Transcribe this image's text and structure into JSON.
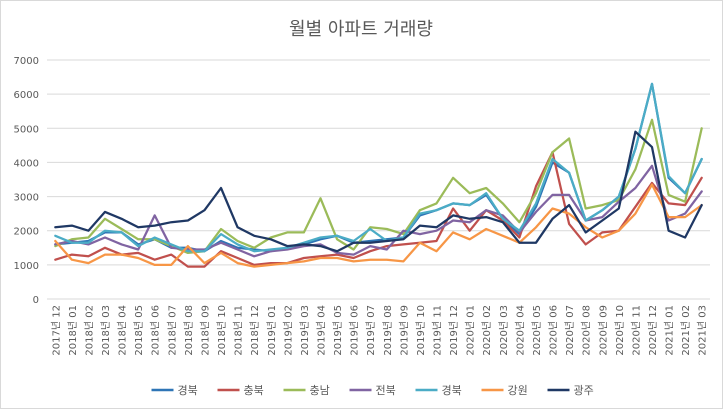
{
  "chart_data": {
    "type": "line",
    "title": "월별 아파트 거래량",
    "xlabel": "",
    "ylabel": "",
    "ylim": [
      0,
      7000
    ],
    "yticks": [
      0,
      1000,
      2000,
      3000,
      4000,
      5000,
      6000,
      7000
    ],
    "grid": true,
    "legend_position": "bottom",
    "x": [
      "2017년 12",
      "2018년 01",
      "2018년 02",
      "2018년 03",
      "2018년 04",
      "2018년 05",
      "2018년 06",
      "2018년 07",
      "2018년 08",
      "2018년 09",
      "2018년 10",
      "2018년 11",
      "2018년 12",
      "2019년 01",
      "2019년 02",
      "2019년 03",
      "2019년 04",
      "2019년 05",
      "2019년 06",
      "2019년 07",
      "2019년 08",
      "2019년 09",
      "2019년 10",
      "2019년 11",
      "2019년 12",
      "2020년 01",
      "2020년 02",
      "2020년 03",
      "2020년 04",
      "2020년 05",
      "2020년 06",
      "2020년 07",
      "2020년 08",
      "2020년 09",
      "2020년 10",
      "2020년 11",
      "2020년 12",
      "2021년 01",
      "2021년 02",
      "2021년 03"
    ],
    "series": [
      {
        "name": "경북",
        "color": "#2e75b6",
        "values": [
          1600,
          1650,
          1700,
          1950,
          1950,
          1600,
          1750,
          1500,
          1500,
          1400,
          1700,
          1500,
          1450,
          1400,
          1500,
          1600,
          1750,
          1850,
          1650,
          1700,
          1750,
          1800,
          2450,
          2600,
          2800,
          2750,
          3050,
          2350,
          1900,
          2700,
          4000,
          3700,
          2300,
          2600,
          3000,
          4400,
          6300,
          3550,
          3100,
          4100
        ]
      },
      {
        "name": "충북",
        "color": "#c0504d",
        "values": [
          1150,
          1300,
          1250,
          1500,
          1300,
          1350,
          1150,
          1300,
          950,
          950,
          1400,
          1200,
          1000,
          1050,
          1050,
          1200,
          1250,
          1300,
          1200,
          1400,
          1550,
          1600,
          1650,
          1700,
          2650,
          2000,
          2600,
          2300,
          1800,
          3300,
          4300,
          2200,
          1600,
          1950,
          2000,
          2700,
          3400,
          2800,
          2750,
          3550
        ]
      },
      {
        "name": "충남",
        "color": "#9bbb59",
        "values": [
          1550,
          1750,
          1800,
          2350,
          2050,
          1750,
          1750,
          1550,
          1350,
          1400,
          2050,
          1700,
          1500,
          1800,
          1950,
          1950,
          2950,
          1750,
          1450,
          2100,
          2050,
          1900,
          2600,
          2800,
          3550,
          3100,
          3250,
          2800,
          2250,
          3100,
          4300,
          4700,
          2650,
          2750,
          2900,
          3800,
          5250,
          3050,
          2850,
          5000
        ]
      },
      {
        "name": "전북",
        "color": "#8064a2",
        "values": [
          1600,
          1700,
          1600,
          1800,
          1600,
          1450,
          2450,
          1500,
          1450,
          1450,
          1650,
          1450,
          1250,
          1400,
          1450,
          1550,
          1600,
          1350,
          1300,
          1550,
          1450,
          2000,
          1900,
          2000,
          2300,
          2250,
          2600,
          2450,
          1950,
          2550,
          3050,
          3050,
          2300,
          2400,
          2850,
          3250,
          3900,
          2300,
          2500,
          3150
        ]
      },
      {
        "name": "경북",
        "color": "#4bacc6",
        "values": [
          1850,
          1650,
          1650,
          2000,
          1950,
          1550,
          1800,
          1600,
          1400,
          1400,
          1900,
          1600,
          1400,
          1450,
          1500,
          1650,
          1800,
          1850,
          1700,
          2050,
          1700,
          1800,
          2500,
          2600,
          2800,
          2750,
          3100,
          2350,
          2000,
          2800,
          4100,
          3700,
          2300,
          2600,
          3000,
          4400,
          6300,
          3600,
          3100,
          4100
        ]
      },
      {
        "name": "강원",
        "color": "#f79646",
        "values": [
          1700,
          1150,
          1050,
          1300,
          1300,
          1200,
          1000,
          1000,
          1550,
          1050,
          1350,
          1050,
          950,
          1000,
          1050,
          1100,
          1200,
          1200,
          1100,
          1150,
          1150,
          1100,
          1650,
          1400,
          1950,
          1750,
          2050,
          1850,
          1650,
          2100,
          2650,
          2500,
          2100,
          1800,
          2000,
          2500,
          3350,
          2400,
          2400,
          2750
        ]
      },
      {
        "name": "광주",
        "color": "#1f3864",
        "values": [
          2100,
          2150,
          2000,
          2550,
          2350,
          2100,
          2150,
          2250,
          2300,
          2600,
          3250,
          2100,
          1850,
          1750,
          1550,
          1600,
          1550,
          1400,
          1650,
          1650,
          1700,
          1750,
          2150,
          2100,
          2450,
          2350,
          2400,
          2250,
          1650,
          1650,
          2350,
          2750,
          1950,
          2300,
          2650,
          4900,
          4450,
          2000,
          1800,
          2750
        ]
      }
    ]
  }
}
